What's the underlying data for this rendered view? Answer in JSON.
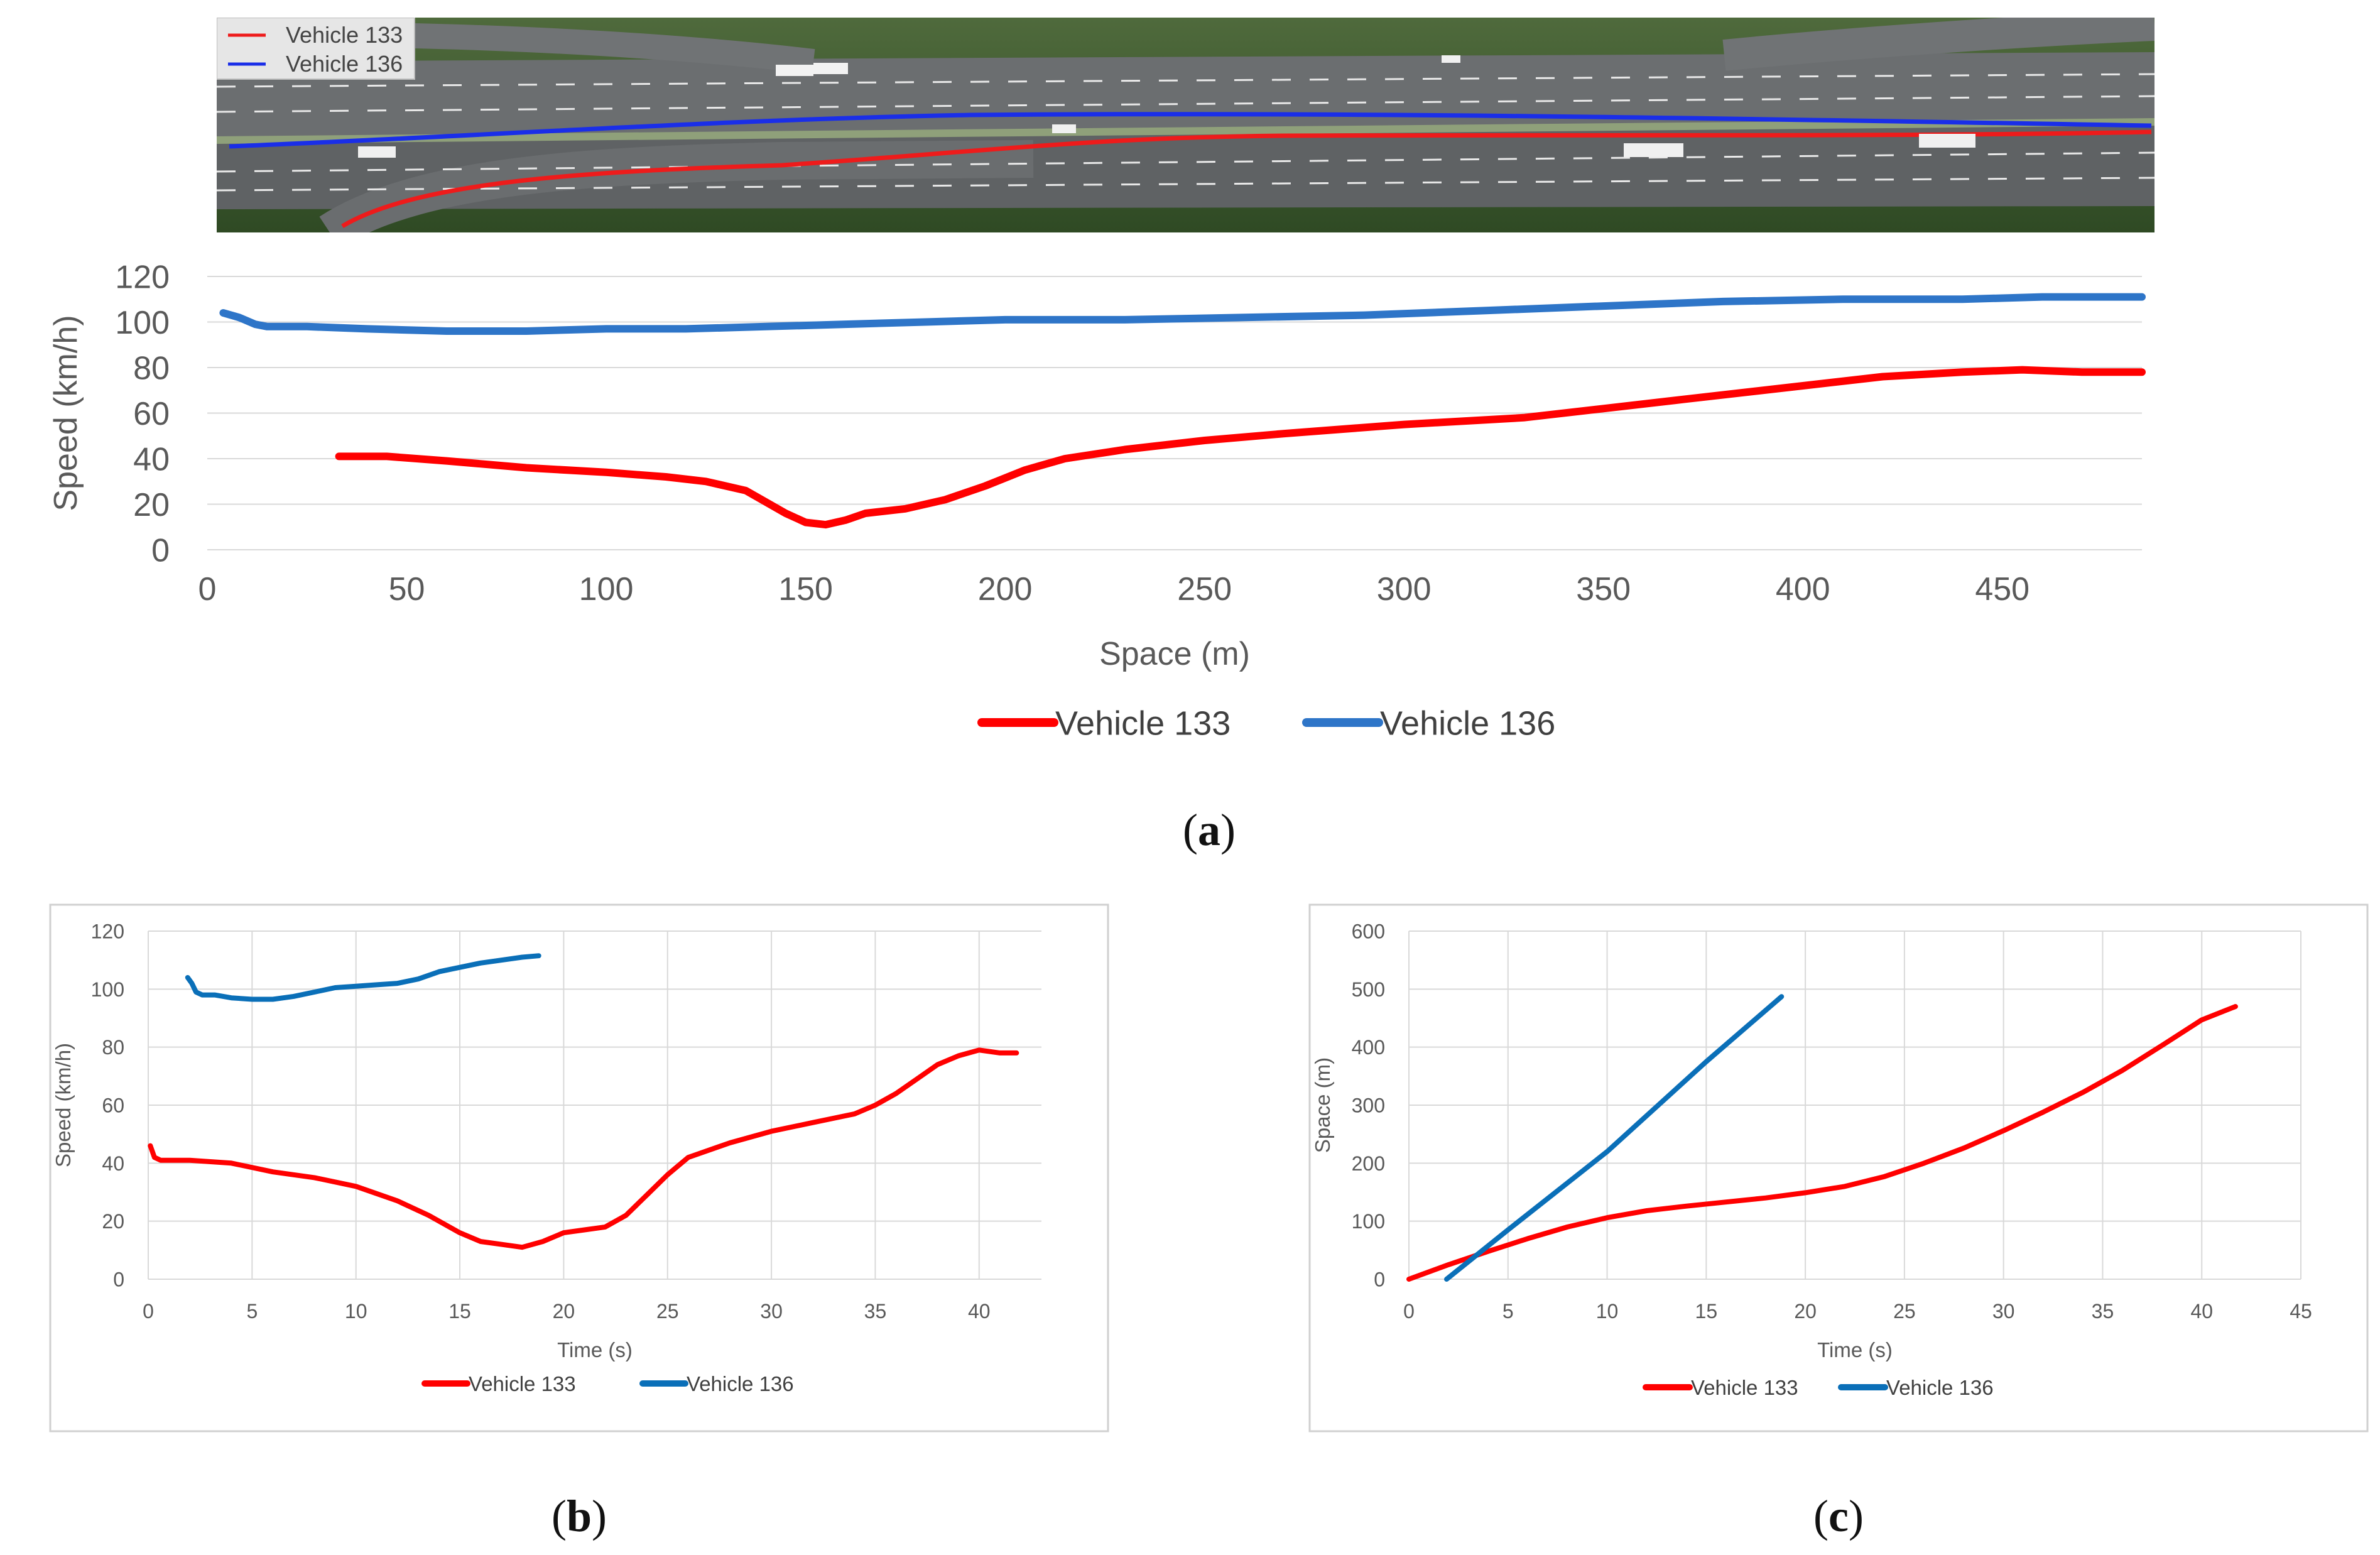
{
  "colors": {
    "vehicle133": "#ff0000",
    "vehicle136_a": "#2e75c8",
    "vehicle136_bc": "#0a6fb8",
    "aerial_red": "#ee1b1b",
    "aerial_blue": "#1a2ee8",
    "grid": "#d9d9d9",
    "axis_text": "#595959"
  },
  "aerial": {
    "legend": [
      {
        "label": "Vehicle 133",
        "color": "#ee1b1b"
      },
      {
        "label": "Vehicle 136",
        "color": "#1a2ee8"
      }
    ]
  },
  "captions": {
    "a": "a",
    "b": "b",
    "c": "c"
  },
  "chart_data": [
    {
      "id": "a",
      "type": "line",
      "title": "",
      "xlabel": "Space (m)",
      "ylabel": "Speed (km/h)",
      "xlim": [
        0,
        485
      ],
      "ylim": [
        0,
        120
      ],
      "xticks": [
        0,
        50,
        100,
        150,
        200,
        250,
        300,
        350,
        400,
        450
      ],
      "yticks": [
        0,
        20,
        40,
        60,
        80,
        100,
        120
      ],
      "grid": "horizontal",
      "legend_position": "bottom",
      "series": [
        {
          "name": "Vehicle 133",
          "color": "#ff0000",
          "x": [
            33,
            45,
            60,
            80,
            100,
            115,
            125,
            135,
            145,
            150,
            155,
            160,
            165,
            175,
            185,
            195,
            205,
            215,
            230,
            250,
            270,
            300,
            330,
            350,
            370,
            400,
            420,
            440,
            455,
            470,
            485
          ],
          "y": [
            41,
            41,
            39,
            36,
            34,
            32,
            30,
            26,
            16,
            12,
            11,
            13,
            16,
            18,
            22,
            28,
            35,
            40,
            44,
            48,
            51,
            55,
            58,
            62,
            66,
            72,
            76,
            78,
            79,
            78,
            78
          ]
        },
        {
          "name": "Vehicle 136",
          "color": "#2e75c8",
          "x": [
            4,
            8,
            12,
            15,
            25,
            40,
            60,
            80,
            100,
            120,
            140,
            160,
            180,
            200,
            230,
            260,
            290,
            320,
            350,
            380,
            410,
            440,
            460,
            485
          ],
          "y": [
            104,
            102,
            99,
            98,
            98,
            97,
            96,
            96,
            97,
            97,
            98,
            99,
            100,
            101,
            101,
            102,
            103,
            105,
            107,
            109,
            110,
            110,
            111,
            111
          ]
        }
      ]
    },
    {
      "id": "b",
      "type": "line",
      "title": "",
      "xlabel": "Time (s)",
      "ylabel": "Speed (km/h)",
      "xlim": [
        0,
        43
      ],
      "ylim": [
        0,
        120
      ],
      "xticks": [
        0,
        5,
        10,
        15,
        20,
        25,
        30,
        35,
        40
      ],
      "yticks": [
        0,
        20,
        40,
        60,
        80,
        100,
        120
      ],
      "grid": "both",
      "legend_position": "bottom",
      "series": [
        {
          "name": "Vehicle 133",
          "color": "#ff0000",
          "x": [
            0.1,
            0.3,
            0.6,
            2,
            4,
            6,
            8,
            10,
            12,
            13.5,
            15,
            16,
            17,
            18,
            19,
            20,
            21,
            22,
            23,
            24,
            25,
            26,
            28,
            30,
            32,
            34,
            35,
            36,
            37,
            38,
            39,
            40,
            41,
            41.8
          ],
          "y": [
            46,
            42,
            41,
            41,
            40,
            37,
            35,
            32,
            27,
            22,
            16,
            13,
            12,
            11,
            13,
            16,
            17,
            18,
            22,
            29,
            36,
            42,
            47,
            51,
            54,
            57,
            60,
            64,
            69,
            74,
            77,
            79,
            78,
            78
          ]
        },
        {
          "name": "Vehicle 136",
          "color": "#0a6fb8",
          "x": [
            1.9,
            2.1,
            2.3,
            2.6,
            3.2,
            4,
            5,
            6,
            7,
            8,
            9,
            10,
            11,
            12,
            13,
            14,
            15,
            16,
            17,
            18,
            18.8
          ],
          "y": [
            104,
            102,
            99,
            98,
            98,
            97,
            96.5,
            96.5,
            97.5,
            99,
            100.5,
            101,
            101.5,
            102,
            103.5,
            106,
            107.5,
            109,
            110,
            111,
            111.5
          ]
        }
      ]
    },
    {
      "id": "c",
      "type": "line",
      "title": "",
      "xlabel": "Time (s)",
      "ylabel": "Space (m)",
      "xlim": [
        0,
        45
      ],
      "ylim": [
        0,
        600
      ],
      "xticks": [
        0,
        5,
        10,
        15,
        20,
        25,
        30,
        35,
        40,
        45
      ],
      "yticks": [
        0,
        100,
        200,
        300,
        400,
        500,
        600
      ],
      "grid": "both",
      "legend_position": "bottom",
      "series": [
        {
          "name": "Vehicle 133",
          "color": "#ff0000",
          "x": [
            0,
            2,
            4,
            6,
            8,
            10,
            12,
            14,
            16,
            18,
            20,
            22,
            24,
            26,
            28,
            30,
            32,
            34,
            36,
            38,
            40,
            41.7
          ],
          "y": [
            0,
            25,
            48,
            70,
            90,
            106,
            118,
            126,
            133,
            140,
            149,
            160,
            177,
            200,
            226,
            256,
            288,
            322,
            360,
            403,
            447,
            470
          ]
        },
        {
          "name": "Vehicle 136",
          "color": "#0a6fb8",
          "x": [
            1.9,
            5,
            10,
            15,
            18.8
          ],
          "y": [
            0,
            85,
            220,
            375,
            487
          ]
        }
      ]
    }
  ]
}
